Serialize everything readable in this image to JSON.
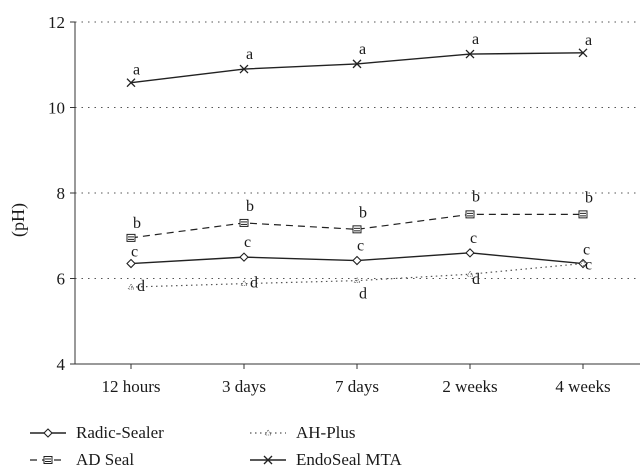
{
  "chart_data": {
    "type": "line",
    "ylabel": "(pH)",
    "xlabel": "",
    "categories": [
      "12 hours",
      "3 days",
      "7 days",
      "2 weeks",
      "4 weeks"
    ],
    "ylim": [
      4,
      12
    ],
    "yticks": [
      4,
      6,
      8,
      10,
      12
    ],
    "grid": "horizontal dotted",
    "legend_position": "bottom",
    "series": [
      {
        "name": "Radic-Sealer",
        "style": "solid",
        "marker": "diamond",
        "values": [
          6.35,
          6.5,
          6.42,
          6.6,
          6.35
        ],
        "letters": [
          "c",
          "c",
          "c",
          "c",
          "c"
        ]
      },
      {
        "name": "AD Seal",
        "style": "dashed",
        "marker": "equals",
        "values": [
          6.95,
          7.3,
          7.15,
          7.5,
          7.5
        ],
        "letters": [
          "b",
          "b",
          "b",
          "b",
          "b"
        ]
      },
      {
        "name": "AH-Plus",
        "style": "dotted",
        "marker": "small-triangle",
        "values": [
          5.8,
          5.88,
          5.95,
          6.1,
          6.35
        ],
        "letters": [
          "d",
          "d",
          "d",
          "d",
          "c"
        ]
      },
      {
        "name": "EndoSeal MTA",
        "style": "solid",
        "marker": "x",
        "values": [
          10.58,
          10.9,
          11.02,
          11.25,
          11.28
        ],
        "letters": [
          "a",
          "a",
          "a",
          "a",
          "a"
        ]
      }
    ]
  }
}
